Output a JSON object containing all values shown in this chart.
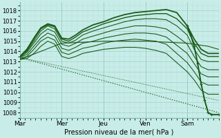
{
  "bg_color": "#c8ede8",
  "grid_color_major": "#a0cfc8",
  "grid_color_minor": "#b8ddd8",
  "line_color": "#1a5c1a",
  "xlabel": "Pression niveau de la mer( hPa )",
  "ylim": [
    1007.5,
    1018.8
  ],
  "xlim": [
    0,
    228
  ],
  "yticks": [
    1008,
    1009,
    1010,
    1011,
    1012,
    1013,
    1014,
    1015,
    1016,
    1017,
    1018
  ],
  "xtick_positions": [
    0,
    48,
    96,
    144,
    192
  ],
  "xtick_labels": [
    "Mar",
    "Mer",
    "Jeu",
    "Ven",
    "Sam"
  ],
  "num_points": 229,
  "series_waypoints": [
    [
      [
        0,
        1013.5
      ],
      [
        8,
        1014.2
      ],
      [
        16,
        1015.3
      ],
      [
        24,
        1016.3
      ],
      [
        32,
        1016.7
      ],
      [
        40,
        1016.5
      ],
      [
        48,
        1015.3
      ],
      [
        56,
        1015.2
      ],
      [
        64,
        1015.6
      ],
      [
        72,
        1016.1
      ],
      [
        84,
        1016.6
      ],
      [
        96,
        1016.9
      ],
      [
        108,
        1017.3
      ],
      [
        120,
        1017.6
      ],
      [
        132,
        1017.8
      ],
      [
        144,
        1017.9
      ],
      [
        156,
        1018.0
      ],
      [
        168,
        1018.1
      ],
      [
        180,
        1017.8
      ],
      [
        192,
        1016.5
      ],
      [
        200,
        1015.2
      ],
      [
        208,
        1014.2
      ],
      [
        216,
        1013.8
      ],
      [
        228,
        1013.8
      ]
    ],
    [
      [
        0,
        1013.5
      ],
      [
        8,
        1014.1
      ],
      [
        16,
        1015.2
      ],
      [
        24,
        1016.2
      ],
      [
        32,
        1016.6
      ],
      [
        40,
        1016.4
      ],
      [
        48,
        1015.2
      ],
      [
        56,
        1015.0
      ],
      [
        64,
        1015.4
      ],
      [
        72,
        1015.9
      ],
      [
        84,
        1016.3
      ],
      [
        96,
        1016.7
      ],
      [
        108,
        1017.0
      ],
      [
        120,
        1017.3
      ],
      [
        132,
        1017.5
      ],
      [
        144,
        1017.6
      ],
      [
        156,
        1017.7
      ],
      [
        168,
        1017.7
      ],
      [
        180,
        1017.2
      ],
      [
        192,
        1016.2
      ],
      [
        200,
        1014.8
      ],
      [
        208,
        1013.8
      ],
      [
        216,
        1013.5
      ],
      [
        228,
        1013.5
      ]
    ],
    [
      [
        0,
        1013.5
      ],
      [
        8,
        1014.0
      ],
      [
        16,
        1015.0
      ],
      [
        24,
        1016.0
      ],
      [
        32,
        1016.5
      ],
      [
        40,
        1016.2
      ],
      [
        48,
        1015.0
      ],
      [
        56,
        1014.8
      ],
      [
        64,
        1015.1
      ],
      [
        72,
        1015.6
      ],
      [
        84,
        1016.0
      ],
      [
        96,
        1016.3
      ],
      [
        108,
        1016.6
      ],
      [
        120,
        1016.9
      ],
      [
        132,
        1017.1
      ],
      [
        144,
        1017.2
      ],
      [
        156,
        1017.2
      ],
      [
        168,
        1017.1
      ],
      [
        180,
        1016.5
      ],
      [
        192,
        1015.6
      ],
      [
        200,
        1014.2
      ],
      [
        208,
        1013.2
      ],
      [
        216,
        1013.0
      ],
      [
        228,
        1013.0
      ]
    ],
    [
      [
        0,
        1013.4
      ],
      [
        8,
        1013.9
      ],
      [
        16,
        1014.8
      ],
      [
        24,
        1015.7
      ],
      [
        32,
        1016.2
      ],
      [
        40,
        1015.9
      ],
      [
        48,
        1014.7
      ],
      [
        56,
        1014.5
      ],
      [
        64,
        1014.8
      ],
      [
        72,
        1015.2
      ],
      [
        84,
        1015.5
      ],
      [
        96,
        1015.8
      ],
      [
        108,
        1016.1
      ],
      [
        120,
        1016.3
      ],
      [
        132,
        1016.5
      ],
      [
        144,
        1016.5
      ],
      [
        156,
        1016.4
      ],
      [
        168,
        1016.2
      ],
      [
        180,
        1015.5
      ],
      [
        192,
        1014.7
      ],
      [
        200,
        1013.5
      ],
      [
        208,
        1012.5
      ],
      [
        216,
        1012.2
      ],
      [
        228,
        1012.2
      ]
    ],
    [
      [
        0,
        1013.4
      ],
      [
        8,
        1013.7
      ],
      [
        16,
        1014.5
      ],
      [
        24,
        1015.3
      ],
      [
        32,
        1015.8
      ],
      [
        40,
        1015.5
      ],
      [
        48,
        1014.3
      ],
      [
        56,
        1014.1
      ],
      [
        64,
        1014.4
      ],
      [
        72,
        1014.8
      ],
      [
        84,
        1015.0
      ],
      [
        96,
        1015.3
      ],
      [
        108,
        1015.5
      ],
      [
        120,
        1015.7
      ],
      [
        132,
        1015.8
      ],
      [
        144,
        1015.8
      ],
      [
        156,
        1015.7
      ],
      [
        168,
        1015.4
      ],
      [
        180,
        1014.6
      ],
      [
        192,
        1013.8
      ],
      [
        200,
        1012.8
      ],
      [
        208,
        1011.8
      ],
      [
        216,
        1011.5
      ],
      [
        228,
        1011.5
      ]
    ],
    [
      [
        0,
        1013.3
      ],
      [
        8,
        1013.5
      ],
      [
        16,
        1014.2
      ],
      [
        24,
        1015.0
      ],
      [
        32,
        1015.4
      ],
      [
        40,
        1015.1
      ],
      [
        48,
        1013.9
      ],
      [
        56,
        1013.7
      ],
      [
        64,
        1014.0
      ],
      [
        72,
        1014.3
      ],
      [
        84,
        1014.5
      ],
      [
        96,
        1014.8
      ],
      [
        108,
        1015.0
      ],
      [
        120,
        1015.1
      ],
      [
        132,
        1015.2
      ],
      [
        144,
        1015.1
      ],
      [
        156,
        1015.0
      ],
      [
        168,
        1014.7
      ],
      [
        180,
        1013.8
      ],
      [
        192,
        1012.9
      ],
      [
        200,
        1012.0
      ],
      [
        208,
        1011.0
      ],
      [
        216,
        1010.7
      ],
      [
        228,
        1010.7
      ]
    ],
    [
      [
        0,
        1013.2
      ],
      [
        8,
        1013.3
      ],
      [
        16,
        1013.8
      ],
      [
        24,
        1014.5
      ],
      [
        32,
        1015.0
      ],
      [
        40,
        1014.7
      ],
      [
        48,
        1013.5
      ],
      [
        56,
        1013.3
      ],
      [
        64,
        1013.5
      ],
      [
        72,
        1013.8
      ],
      [
        84,
        1014.0
      ],
      [
        96,
        1014.2
      ],
      [
        108,
        1014.3
      ],
      [
        120,
        1014.4
      ],
      [
        132,
        1014.4
      ],
      [
        144,
        1014.3
      ],
      [
        156,
        1014.1
      ],
      [
        168,
        1013.8
      ],
      [
        180,
        1012.9
      ],
      [
        192,
        1012.0
      ],
      [
        200,
        1011.2
      ],
      [
        208,
        1010.2
      ],
      [
        216,
        1009.8
      ],
      [
        228,
        1009.8
      ]
    ],
    [
      [
        0,
        1013.2
      ],
      [
        48,
        1014.8
      ],
      [
        96,
        1015.0
      ],
      [
        144,
        1015.0
      ],
      [
        192,
        1014.8
      ],
      [
        216,
        1014.5
      ],
      [
        228,
        1014.2
      ]
    ],
    [
      [
        0,
        1013.4
      ],
      [
        228,
        1008.0
      ]
    ],
    [
      [
        0,
        1013.4
      ],
      [
        228,
        1009.2
      ]
    ]
  ],
  "line_styles": [
    "-",
    "-",
    "-",
    "-",
    "-",
    "-",
    "-",
    "-",
    ":",
    ":"
  ],
  "line_widths": [
    1.3,
    1.0,
    0.8,
    0.8,
    0.8,
    0.8,
    0.8,
    0.8,
    0.9,
    0.7
  ],
  "steep_drop": [
    [
      192,
      1016.5
    ],
    [
      196,
      1015.6
    ],
    [
      200,
      1014.5
    ],
    [
      204,
      1012.8
    ],
    [
      208,
      1010.8
    ],
    [
      212,
      1009.2
    ],
    [
      216,
      1008.0
    ],
    [
      220,
      1007.8
    ],
    [
      228,
      1007.8
    ]
  ],
  "steep_drop_lw": 1.4
}
